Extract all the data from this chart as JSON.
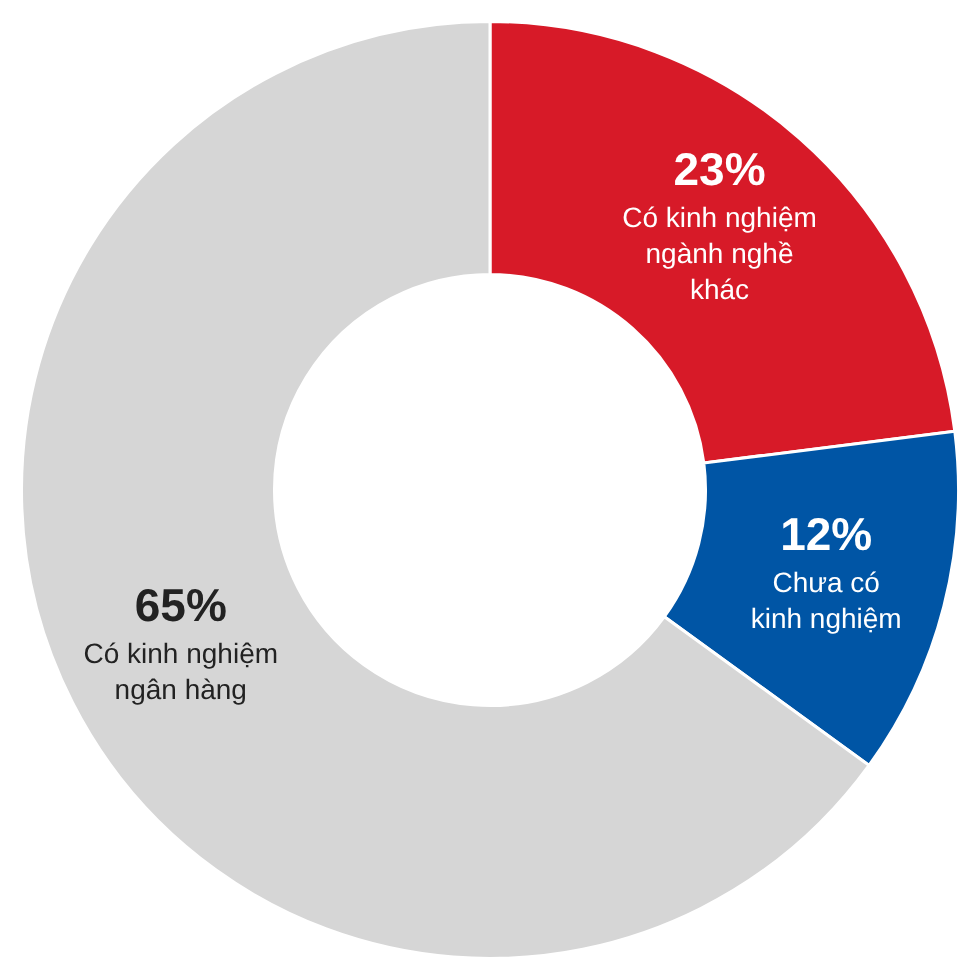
{
  "chart_data": {
    "type": "donut",
    "categories": [
      "Có kinh nghiệm\nngành nghề\nkhác",
      "Chưa có\nkinh nghiệm",
      "Có kinh nghiệm\nngân hàng"
    ],
    "values": [
      23,
      12,
      65
    ],
    "value_labels": [
      "23%",
      "12%",
      "65%"
    ],
    "colors": [
      "#d71a28",
      "#0055a5",
      "#d6d6d6"
    ],
    "legend": false
  }
}
